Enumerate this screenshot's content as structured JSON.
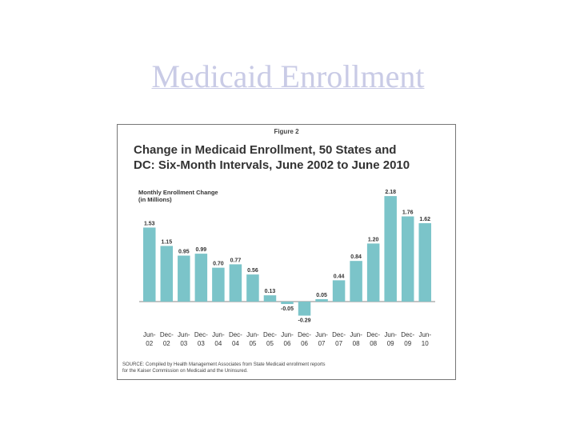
{
  "slide": {
    "title": "Medicaid Enrollment"
  },
  "figure": {
    "label": "Figure 2",
    "title_line1": "Change in Medicaid Enrollment, 50 States and",
    "title_line2": "DC: Six-Month Intervals, June 2002 to June 2010",
    "ylabel_line1": "Monthly Enrollment Change",
    "ylabel_line2": "(in Millions)",
    "source_line1": "SOURCE: Compiled by Health Management Associates from State Medicaid enrollment reports",
    "source_line2": "for the Kaiser Commission on Medicaid and the Uninsured."
  },
  "chart_data": {
    "type": "bar",
    "title": "Change in Medicaid Enrollment, 50 States and DC: Six-Month Intervals, June 2002 to June 2010",
    "ylabel": "Monthly Enrollment Change (in Millions)",
    "xlabel": "",
    "categories": [
      [
        "Jun-",
        "02"
      ],
      [
        "Dec-",
        "02"
      ],
      [
        "Jun-",
        "03"
      ],
      [
        "Dec-",
        "03"
      ],
      [
        "Jun-",
        "04"
      ],
      [
        "Dec-",
        "04"
      ],
      [
        "Jun-",
        "05"
      ],
      [
        "Dec-",
        "05"
      ],
      [
        "Jun-",
        "06"
      ],
      [
        "Dec-",
        "06"
      ],
      [
        "Jun-",
        "07"
      ],
      [
        "Dec-",
        "07"
      ],
      [
        "Jun-",
        "08"
      ],
      [
        "Dec-",
        "08"
      ],
      [
        "Jun-",
        "09"
      ],
      [
        "Dec-",
        "09"
      ],
      [
        "Jun-",
        "10"
      ]
    ],
    "values": [
      1.53,
      1.15,
      0.95,
      0.99,
      0.7,
      0.77,
      0.56,
      0.13,
      -0.05,
      -0.29,
      0.05,
      0.44,
      0.84,
      1.2,
      2.18,
      1.76,
      1.62
    ],
    "value_labels": [
      "1.53",
      "1.15",
      "0.95",
      "0.99",
      "0.70",
      "0.77",
      "0.56",
      "0.13",
      "-0.05",
      "-0.29",
      "0.05",
      "0.44",
      "0.84",
      "1.20",
      "2.18",
      "1.76",
      "1.62"
    ],
    "ylim": [
      -0.3,
      2.2
    ],
    "bar_color": "#7bc4c9",
    "grid": false,
    "legend": "none"
  }
}
